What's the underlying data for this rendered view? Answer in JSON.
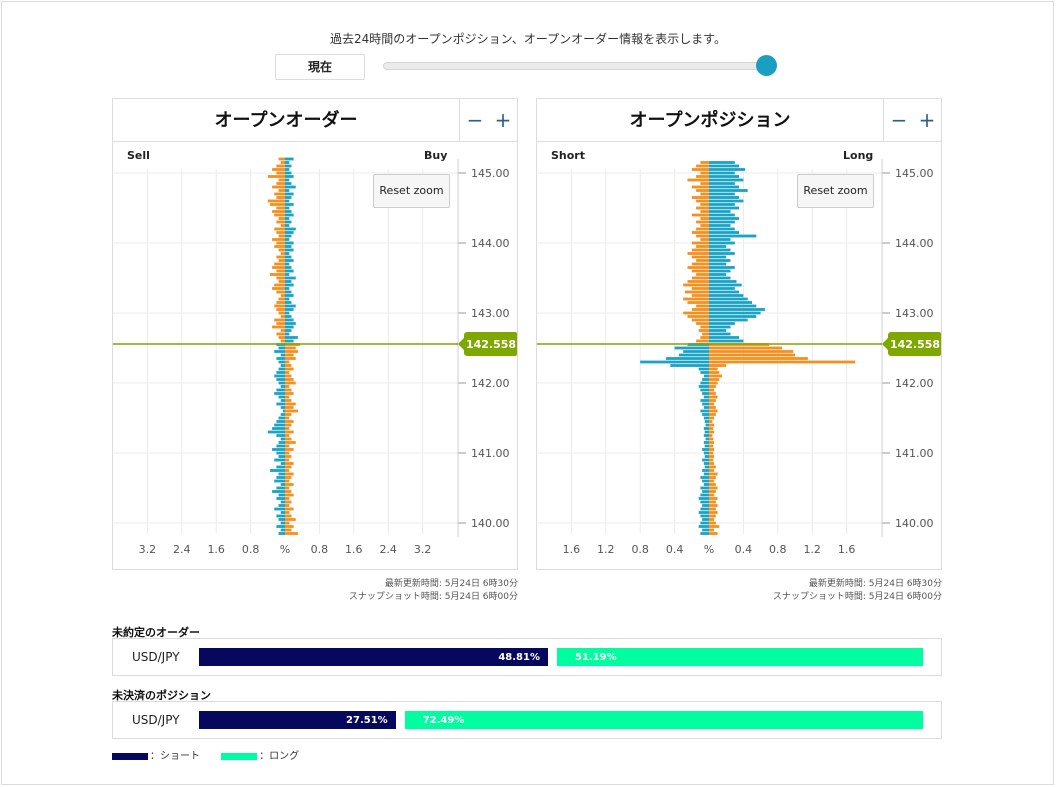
{
  "header": {
    "description": "過去24時間のオープンポジション、オープンオーダー情報を表示します。",
    "now_label": "現在",
    "slider_value_percent": 100
  },
  "orders_panel": {
    "title": "オープンオーダー",
    "zoom_out": "−",
    "zoom_in": "+",
    "left_label": "Sell",
    "right_label": "Buy",
    "reset_zoom": "Reset zoom",
    "current_price": "142.558",
    "updated": "最新更新時間: 5月24日 6時30分",
    "snapshot": "スナップショット時間: 5月24日 6時00分"
  },
  "positions_panel": {
    "title": "オープンポジション",
    "zoom_out": "−",
    "zoom_in": "+",
    "left_label": "Short",
    "right_label": "Long",
    "reset_zoom": "Reset zoom",
    "current_price": "142.558",
    "updated": "最新更新時間: 5月24日 6時30分",
    "snapshot": "スナップショット時間: 5月24日 6時00分"
  },
  "unfilled_orders": {
    "label": "未約定のオーダー",
    "pair": "USD/JPY",
    "short_pct": "48.81%",
    "long_pct": "51.19%",
    "short_value": 48.81,
    "long_value": 51.19
  },
  "open_positions": {
    "label": "未決済のポジション",
    "pair": "USD/JPY",
    "short_pct": "27.51%",
    "long_pct": "72.49%",
    "short_value": 27.51,
    "long_value": 72.49
  },
  "legend": {
    "short_label": "：ショート",
    "long_label": "：ロング",
    "short_color": "#05085c",
    "long_color": "#00fda0"
  },
  "colors": {
    "sell_short": "#f5901e",
    "buy_long": "#1aa3c5",
    "price_line": "#7ea700"
  },
  "chart_data": [
    {
      "type": "bar",
      "name": "orders",
      "orientation": "horizontal",
      "y_ticks": [
        "145.00",
        "144.00",
        "143.00",
        "142.00",
        "141.00",
        "140.00"
      ],
      "y_tick_values": [
        145.0,
        144.0,
        143.0,
        142.0,
        141.0,
        140.0
      ],
      "x_ticks": [
        "3.2",
        "2.4",
        "1.6",
        "0.8",
        "%",
        "0.8",
        "1.6",
        "2.4",
        "3.2"
      ],
      "xlim": [
        -4.0,
        4.0
      ],
      "ylim": [
        139.8,
        145.2
      ],
      "current_price": 142.558,
      "bin_size": 0.05,
      "price_start": 139.85,
      "left_series": [
        0.15,
        0.1,
        0.2,
        0.1,
        0.15,
        0.2,
        0.1,
        0.25,
        0.15,
        0.1,
        0.2,
        0.15,
        0.3,
        0.2,
        0.1,
        0.25,
        0.2,
        0.15,
        0.35,
        0.2,
        0.1,
        0.25,
        0.15,
        0.2,
        0.3,
        0.2,
        0.15,
        0.1,
        0.2,
        0.4,
        0.3,
        0.25,
        0.2,
        0.15,
        0.1,
        0.05,
        0.1,
        0.2,
        0.1,
        0.15,
        0.25,
        0.2,
        0.1,
        0.15,
        0.2,
        0.25,
        0.2,
        0.15,
        0.1,
        0.15,
        0.2,
        0.1,
        0.25,
        0.15,
        0.2,
        0.1,
        0.15,
        0.2,
        0.1,
        0.3,
        0.2,
        0.25,
        0.1,
        0.15,
        0.2,
        0.25,
        0.2,
        0.15,
        0.1,
        0.2,
        0.3,
        0.25,
        0.15,
        0.2,
        0.35,
        0.2,
        0.3,
        0.25,
        0.15,
        0.2,
        0.1,
        0.15,
        0.25,
        0.2,
        0.3,
        0.15,
        0.2,
        0.25,
        0.1,
        0.2,
        0.15,
        0.25,
        0.3,
        0.2,
        0.35,
        0.4,
        0.2,
        0.25,
        0.15,
        0.3,
        0.2,
        0.15,
        0.4,
        0.2,
        0.3,
        0.2,
        0.1,
        0.15
      ],
      "right_series": [
        0.3,
        0.15,
        0.2,
        0.1,
        0.25,
        0.15,
        0.1,
        0.2,
        0.1,
        0.15,
        0.1,
        0.2,
        0.15,
        0.1,
        0.2,
        0.1,
        0.15,
        0.2,
        0.1,
        0.15,
        0.2,
        0.1,
        0.15,
        0.1,
        0.2,
        0.1,
        0.25,
        0.15,
        0.1,
        0.2,
        0.1,
        0.15,
        0.2,
        0.1,
        0.15,
        0.3,
        0.2,
        0.25,
        0.15,
        0.1,
        0.2,
        0.15,
        0.1,
        0.25,
        0.2,
        0.15,
        0.1,
        0.2,
        0.15,
        0.1,
        0.25,
        0.2,
        0.3,
        0.25,
        0.35,
        0.2,
        0.3,
        0.1,
        0.15,
        0.2,
        0.25,
        0.2,
        0.15,
        0.1,
        0.2,
        0.25,
        0.15,
        0.1,
        0.2,
        0.15,
        0.1,
        0.2,
        0.15,
        0.25,
        0.1,
        0.2,
        0.15,
        0.1,
        0.2,
        0.15,
        0.1,
        0.2,
        0.15,
        0.2,
        0.1,
        0.15,
        0.2,
        0.25,
        0.1,
        0.15,
        0.1,
        0.2,
        0.15,
        0.1,
        0.2,
        0.1,
        0.15,
        0.2,
        0.1,
        0.25,
        0.15,
        0.1,
        0.2,
        0.15,
        0.1,
        0.15,
        0.1,
        0.2
      ]
    },
    {
      "type": "bar",
      "name": "positions",
      "orientation": "horizontal",
      "y_ticks": [
        "145.00",
        "144.00",
        "143.00",
        "142.00",
        "141.00",
        "140.00"
      ],
      "y_tick_values": [
        145.0,
        144.0,
        143.0,
        142.0,
        141.0,
        140.0
      ],
      "x_ticks": [
        "1.6",
        "1.2",
        "0.8",
        "0.4",
        "%",
        "0.4",
        "0.8",
        "1.2",
        "1.6"
      ],
      "xlim": [
        -2.0,
        2.0
      ],
      "ylim": [
        139.8,
        145.2
      ],
      "current_price": 142.558,
      "bin_size": 0.05,
      "price_start": 139.85,
      "left_series": [
        0.1,
        0.08,
        0.12,
        0.1,
        0.08,
        0.1,
        0.12,
        0.1,
        0.08,
        0.1,
        0.12,
        0.1,
        0.08,
        0.1,
        0.06,
        0.08,
        0.1,
        0.06,
        0.08,
        0.05,
        0.06,
        0.08,
        0.05,
        0.06,
        0.08,
        0.05,
        0.06,
        0.04,
        0.06,
        0.05,
        0.06,
        0.04,
        0.05,
        0.06,
        0.08,
        0.1,
        0.06,
        0.08,
        0.1,
        0.06,
        0.08,
        0.1,
        0.12,
        0.1,
        0.08,
        0.06,
        0.1,
        0.12,
        0.45,
        0.8,
        0.5,
        0.35,
        0.3,
        0.4,
        0.25,
        0.15,
        0.1,
        0.08,
        0.12,
        0.1,
        0.15,
        0.2,
        0.25,
        0.3,
        0.2,
        0.15,
        0.25,
        0.3,
        0.2,
        0.28,
        0.2,
        0.3,
        0.25,
        0.2,
        0.15,
        0.2,
        0.25,
        0.2,
        0.15,
        0.2,
        0.25,
        0.2,
        0.15,
        0.2,
        0.1,
        0.15,
        0.2,
        0.15,
        0.1,
        0.15,
        0.1,
        0.2,
        0.1,
        0.15,
        0.1,
        0.15,
        0.2,
        0.1,
        0.15,
        0.2,
        0.1,
        0.25,
        0.15,
        0.1,
        0.2,
        0.15,
        0.1
      ],
      "right_series": [
        0.1,
        0.06,
        0.12,
        0.08,
        0.06,
        0.08,
        0.1,
        0.08,
        0.1,
        0.08,
        0.1,
        0.06,
        0.08,
        0.1,
        0.08,
        0.06,
        0.08,
        0.1,
        0.06,
        0.08,
        0.06,
        0.05,
        0.06,
        0.05,
        0.06,
        0.05,
        0.06,
        0.05,
        0.04,
        0.06,
        0.05,
        0.06,
        0.04,
        0.06,
        0.08,
        0.1,
        0.08,
        0.06,
        0.08,
        0.1,
        0.08,
        0.06,
        0.08,
        0.1,
        0.12,
        0.15,
        0.12,
        0.1,
        0.2,
        1.7,
        1.15,
        1.0,
        0.98,
        0.85,
        0.7,
        0.4,
        0.35,
        0.25,
        0.2,
        0.25,
        0.3,
        0.45,
        0.55,
        0.6,
        0.65,
        0.55,
        0.5,
        0.45,
        0.4,
        0.35,
        0.3,
        0.38,
        0.32,
        0.25,
        0.2,
        0.25,
        0.3,
        0.2,
        0.25,
        0.2,
        0.3,
        0.25,
        0.2,
        0.3,
        0.25,
        0.55,
        0.35,
        0.3,
        0.25,
        0.3,
        0.35,
        0.3,
        0.25,
        0.35,
        0.3,
        0.4,
        0.35,
        0.3,
        0.45,
        0.35,
        0.3,
        0.4,
        0.35,
        0.3,
        0.42,
        0.35,
        0.3
      ]
    }
  ]
}
